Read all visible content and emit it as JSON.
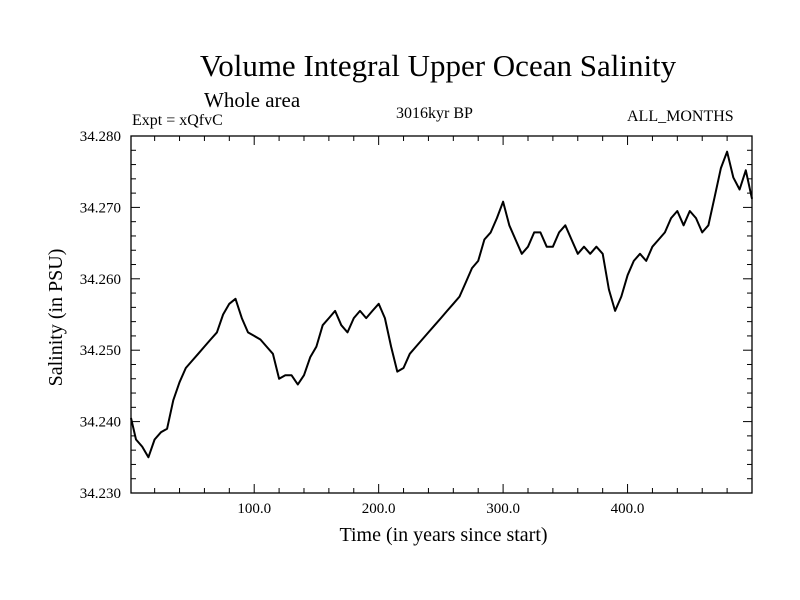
{
  "header": {
    "title": "Volume Integral Upper Ocean Salinity",
    "subtitle": "Whole area",
    "expt": "Expt = xQfvC",
    "period": "3016kyr BP",
    "months": "ALL_MONTHS"
  },
  "chart_data": {
    "type": "line",
    "title": "Volume Integral Upper Ocean Salinity",
    "xlabel": "Time (in years since start)",
    "ylabel": "Salinity (in PSU)",
    "xlim": [
      1,
      500
    ],
    "ylim": [
      34.23,
      34.28
    ],
    "x_ticks": [
      100,
      200,
      300,
      400
    ],
    "x_tick_labels": [
      "100.0",
      "200.0",
      "300.0",
      "400.0"
    ],
    "y_ticks": [
      34.23,
      34.24,
      34.25,
      34.26,
      34.27,
      34.28
    ],
    "y_tick_labels": [
      "34.230",
      "34.240",
      "34.250",
      "34.260",
      "34.270",
      "34.280"
    ],
    "grid": false,
    "series": [
      {
        "name": "Salinity",
        "x": [
          1,
          5,
          10,
          15,
          20,
          25,
          30,
          35,
          40,
          45,
          50,
          55,
          60,
          65,
          70,
          75,
          80,
          85,
          90,
          95,
          100,
          105,
          110,
          115,
          120,
          125,
          130,
          135,
          140,
          145,
          150,
          155,
          160,
          165,
          170,
          175,
          180,
          185,
          190,
          195,
          200,
          205,
          210,
          215,
          220,
          225,
          230,
          235,
          240,
          245,
          250,
          255,
          260,
          265,
          270,
          275,
          280,
          285,
          290,
          295,
          300,
          305,
          310,
          315,
          320,
          325,
          330,
          335,
          340,
          345,
          350,
          355,
          360,
          365,
          370,
          375,
          380,
          385,
          390,
          395,
          400,
          405,
          410,
          415,
          420,
          425,
          430,
          435,
          440,
          445,
          450,
          455,
          460,
          465,
          470,
          475,
          480,
          485,
          490,
          495,
          500
        ],
        "values": [
          34.2405,
          34.2375,
          34.2365,
          34.235,
          34.2375,
          34.2385,
          34.239,
          34.243,
          34.2455,
          34.2475,
          34.2485,
          34.2495,
          34.2505,
          34.2515,
          34.2525,
          34.255,
          34.2565,
          34.2572,
          34.2545,
          34.2525,
          34.252,
          34.2515,
          34.2505,
          34.2495,
          34.246,
          34.2465,
          34.2465,
          34.2452,
          34.2465,
          34.249,
          34.2505,
          34.2535,
          34.2545,
          34.2555,
          34.2535,
          34.2525,
          34.2545,
          34.2555,
          34.2545,
          34.2555,
          34.2565,
          34.2545,
          34.2505,
          34.247,
          34.2475,
          34.2495,
          34.2505,
          34.2515,
          34.2525,
          34.2535,
          34.2545,
          34.2555,
          34.2565,
          34.2575,
          34.2595,
          34.2615,
          34.2625,
          34.2655,
          34.2665,
          34.2685,
          34.2708,
          34.2675,
          34.2655,
          34.2635,
          34.2645,
          34.2665,
          34.2665,
          34.2645,
          34.2645,
          34.2665,
          34.2675,
          34.2655,
          34.2635,
          34.2645,
          34.2635,
          34.2645,
          34.2635,
          34.2585,
          34.2555,
          34.2575,
          34.2605,
          34.2625,
          34.2635,
          34.2625,
          34.2645,
          34.2655,
          34.2665,
          34.2685,
          34.2695,
          34.2675,
          34.2695,
          34.2685,
          34.2665,
          34.2675,
          34.2715,
          34.2755,
          34.2778,
          34.2742,
          34.2725,
          34.2752,
          34.2712
        ]
      }
    ]
  }
}
